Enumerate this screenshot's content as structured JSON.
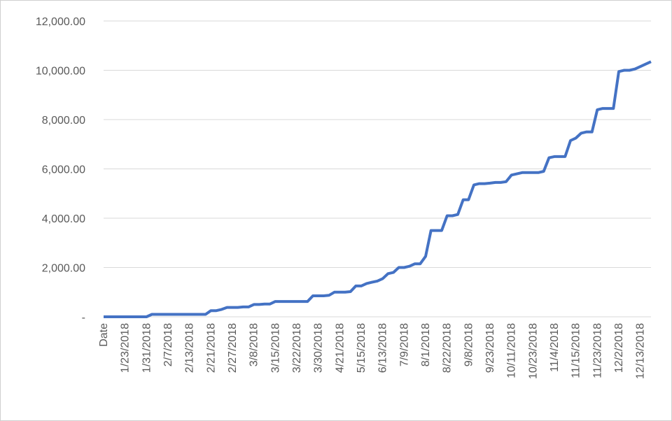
{
  "chart_data": {
    "type": "line",
    "color": "#4472c4",
    "grid": true,
    "categories": [
      "Date",
      null,
      null,
      null,
      "1/23/2018",
      null,
      null,
      null,
      "1/31/2018",
      null,
      null,
      null,
      "2/7/2018",
      null,
      null,
      null,
      "2/13/2018",
      null,
      null,
      null,
      "2/21/2018",
      null,
      null,
      null,
      "2/27/2018",
      null,
      null,
      null,
      "3/8/2018",
      null,
      null,
      null,
      "3/15/2018",
      null,
      null,
      null,
      "3/22/2018",
      null,
      null,
      null,
      "3/30/2018",
      null,
      null,
      null,
      "4/21/2018",
      null,
      null,
      null,
      "5/15/2018",
      null,
      null,
      null,
      "6/13/2018",
      null,
      null,
      null,
      "7/9/2018",
      null,
      null,
      null,
      "8/1/2018",
      null,
      null,
      null,
      "8/22/2018",
      null,
      null,
      null,
      "9/8/2018",
      null,
      null,
      null,
      "9/23/2018",
      null,
      null,
      null,
      "10/11/2018",
      null,
      null,
      null,
      "10/23/2018",
      null,
      null,
      null,
      "11/4/2018",
      null,
      null,
      null,
      "11/15/2018",
      null,
      null,
      null,
      "11/23/2018",
      null,
      null,
      null,
      "12/2/2018",
      null,
      null,
      null,
      "12/13/2018",
      null,
      null
    ],
    "values": [
      0,
      0,
      0,
      0,
      0,
      0,
      0,
      0,
      0,
      100,
      100,
      100,
      100,
      100,
      100,
      100,
      100,
      100,
      100,
      100,
      250,
      250,
      300,
      380,
      380,
      380,
      400,
      400,
      500,
      500,
      520,
      520,
      620,
      620,
      620,
      620,
      620,
      620,
      620,
      850,
      850,
      850,
      870,
      1000,
      1000,
      1000,
      1020,
      1250,
      1250,
      1350,
      1400,
      1450,
      1550,
      1750,
      1800,
      2000,
      2000,
      2050,
      2150,
      2150,
      2450,
      3500,
      3500,
      3500,
      4100,
      4100,
      4150,
      4750,
      4750,
      5350,
      5400,
      5400,
      5420,
      5450,
      5450,
      5480,
      5750,
      5800,
      5850,
      5850,
      5850,
      5850,
      5900,
      6450,
      6500,
      6500,
      6500,
      7150,
      7250,
      7450,
      7500,
      7500,
      8400,
      8450,
      8450,
      8450,
      9950,
      10000,
      10000,
      10050,
      10150,
      10250,
      10350
    ],
    "ylim": [
      0,
      12000
    ],
    "yticks": [
      {
        "value": 0,
        "label": "-"
      },
      {
        "value": 2000,
        "label": "2,000.00"
      },
      {
        "value": 4000,
        "label": "4,000.00"
      },
      {
        "value": 6000,
        "label": "6,000.00"
      },
      {
        "value": 8000,
        "label": "8,000.00"
      },
      {
        "value": 10000,
        "label": "10,000.00"
      },
      {
        "value": 12000,
        "label": "12,000.00"
      }
    ]
  }
}
